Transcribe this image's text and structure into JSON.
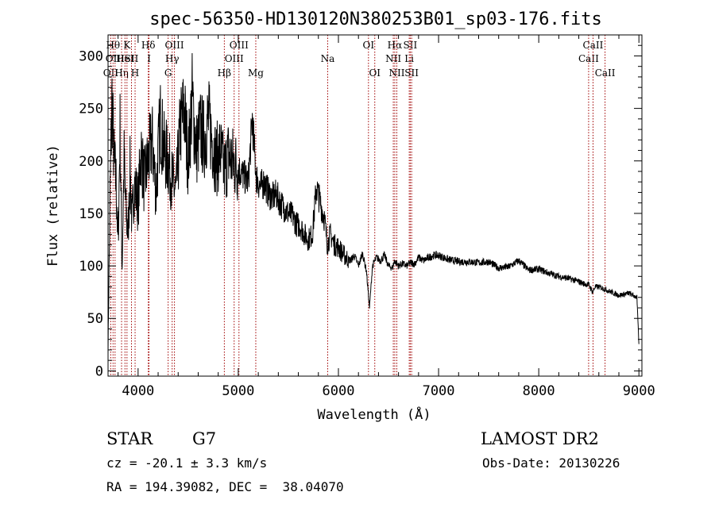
{
  "chart_data": {
    "type": "line",
    "title": "spec-56350-HD130120N380253B01_sp03-176.fits",
    "xlabel": "Wavelength (Å)",
    "ylabel": "Flux (relative)",
    "xlim": [
      3700,
      9030
    ],
    "ylim": [
      -5,
      320
    ],
    "x_ticks": [
      4000,
      5000,
      6000,
      7000,
      8000,
      9000
    ],
    "y_ticks": [
      0,
      50,
      100,
      150,
      200,
      250,
      300
    ],
    "series": [
      {
        "x": [
          3700,
          3720,
          3740,
          3760,
          3780,
          3800,
          3820,
          3840,
          3860,
          3880,
          3900,
          3920,
          3940,
          3960,
          3980,
          4000,
          4030,
          4060,
          4100,
          4140,
          4180,
          4220,
          4260,
          4300,
          4340,
          4380,
          4420,
          4460,
          4500,
          4540,
          4580,
          4620,
          4660,
          4700,
          4740,
          4780,
          4820,
          4860,
          4900,
          4940,
          4980,
          5020,
          5060,
          5100,
          5140,
          5180,
          5220,
          5260,
          5300,
          5340,
          5380,
          5420,
          5460,
          5500,
          5540,
          5580,
          5620,
          5660,
          5700,
          5740,
          5780,
          5820,
          5860,
          5890,
          5920,
          5960,
          6000,
          6040,
          6080,
          6120,
          6160,
          6200,
          6240,
          6280,
          6310,
          6340,
          6380,
          6420,
          6460,
          6500,
          6540,
          6560,
          6600,
          6640,
          6680,
          6720,
          6760,
          6800,
          6850,
          6900,
          6950,
          7000,
          7100,
          7200,
          7300,
          7400,
          7500,
          7600,
          7700,
          7800,
          7900,
          8000,
          8100,
          8200,
          8300,
          8400,
          8450,
          8500,
          8540,
          8560,
          8600,
          8660,
          8700,
          8800,
          8900,
          8980,
          9000
        ],
        "y": [
          20,
          170,
          260,
          200,
          180,
          120,
          230,
          100,
          200,
          150,
          130,
          190,
          140,
          180,
          170,
          160,
          210,
          180,
          200,
          220,
          170,
          240,
          210,
          200,
          180,
          170,
          230,
          250,
          200,
          260,
          210,
          230,
          220,
          240,
          220,
          200,
          210,
          190,
          205,
          200,
          195,
          190,
          185,
          180,
          240,
          185,
          175,
          180,
          170,
          165,
          168,
          160,
          155,
          150,
          148,
          140,
          138,
          130,
          125,
          130,
          175,
          160,
          145,
          120,
          130,
          120,
          118,
          112,
          108,
          105,
          110,
          100,
          112,
          95,
          60,
          100,
          108,
          105,
          110,
          100,
          98,
          105,
          100,
          102,
          100,
          103,
          102,
          108,
          105,
          108,
          110,
          110,
          106,
          104,
          104,
          103,
          104,
          98,
          99,
          105,
          96,
          97,
          93,
          90,
          88,
          85,
          83,
          82,
          75,
          80,
          80,
          78,
          76,
          72,
          74,
          70,
          25
        ]
      }
    ],
    "line_markers": [
      {
        "w": 3727,
        "label": "OII",
        "row": 2
      },
      {
        "w": 3750,
        "label": "Hθ",
        "row": 0
      },
      {
        "w": 3770,
        "label": "OIII",
        "row": 1
      },
      {
        "w": 3835,
        "label": "Hη",
        "row": 2
      },
      {
        "w": 3869,
        "label": "HeI",
        "row": 1
      },
      {
        "w": 3889,
        "label": "K",
        "row": 0
      },
      {
        "w": 3934,
        "label": "SII",
        "row": 1
      },
      {
        "w": 3970,
        "label": "H",
        "row": 2
      },
      {
        "w": 4102,
        "label": "Hδ",
        "row": 0
      },
      {
        "w": 4109,
        "label": "I",
        "row": 1
      },
      {
        "w": 4300,
        "label": "G",
        "row": 2
      },
      {
        "w": 4340,
        "label": "Hγ",
        "row": 1
      },
      {
        "w": 4363,
        "label": "OIII",
        "row": 0
      },
      {
        "w": 4861,
        "label": "Hβ",
        "row": 2
      },
      {
        "w": 4959,
        "label": "OIII",
        "row": 1
      },
      {
        "w": 5007,
        "label": "OIII",
        "row": 0
      },
      {
        "w": 5175,
        "label": "Mg",
        "row": 2
      },
      {
        "w": 5893,
        "label": "Na",
        "row": 1
      },
      {
        "w": 6300,
        "label": "OI",
        "row": 0
      },
      {
        "w": 6363,
        "label": "OI",
        "row": 2
      },
      {
        "w": 6548,
        "label": "NII",
        "row": 1
      },
      {
        "w": 6563,
        "label": "Hα",
        "row": 0
      },
      {
        "w": 6583,
        "label": "NII",
        "row": 2
      },
      {
        "w": 6707,
        "label": "Li",
        "row": 1
      },
      {
        "w": 6717,
        "label": "SII",
        "row": 0
      },
      {
        "w": 6731,
        "label": "SII",
        "row": 2
      },
      {
        "w": 8498,
        "label": "CaII",
        "row": 1
      },
      {
        "w": 8542,
        "label": "CaII",
        "row": 0
      },
      {
        "w": 8662,
        "label": "CaII",
        "row": 2
      }
    ]
  },
  "info": {
    "class_label": "STAR",
    "subclass": "G7",
    "survey": "LAMOST DR2",
    "cz": "cz = -20.1 ± 3.3 km/s",
    "obs_date": "Obs-Date: 20130226",
    "coords": "RA = 194.39082, DEC =  38.04070"
  },
  "colors": {
    "line": "#000000",
    "marker": "#a00000"
  }
}
